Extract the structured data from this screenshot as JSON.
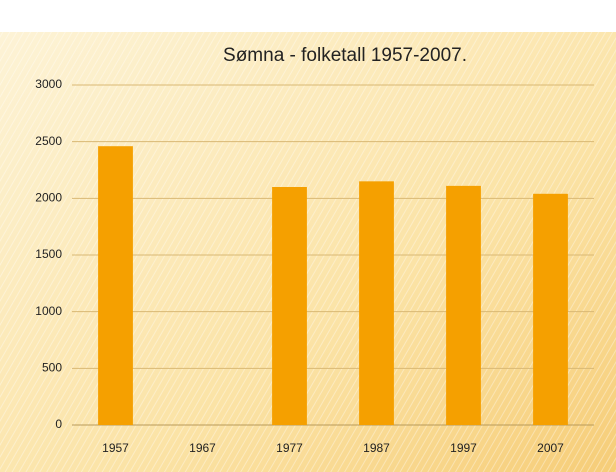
{
  "chart_data": {
    "type": "bar",
    "title": "Sømna - folketall 1957-2007.",
    "categories": [
      "1957",
      "1967",
      "1977",
      "1987",
      "1997",
      "2007"
    ],
    "values": [
      2460,
      null,
      2100,
      2150,
      2110,
      2040
    ],
    "color": "#f5a000",
    "ylim": [
      0,
      3000
    ],
    "yticks": [
      0,
      500,
      1000,
      1500,
      2000,
      2500,
      3000
    ],
    "grid": true
  }
}
